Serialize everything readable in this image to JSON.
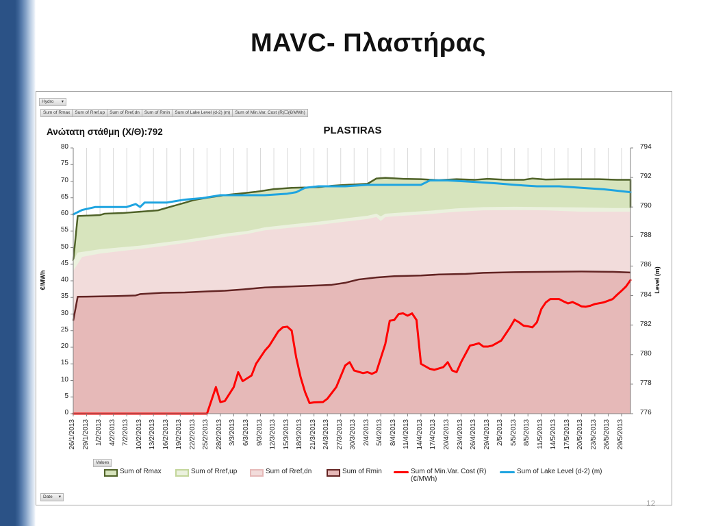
{
  "slide": {
    "title": "MAVC- Πλαστήρας",
    "page_number": "12"
  },
  "pivot": {
    "filter_button": "Hydro",
    "value_fields": [
      "Sum of Rmax",
      "Sum of Rref,up",
      "Sum of Rref,dn",
      "Sum of Rmin",
      "Sum of Lake Level (d-2) (m)",
      "Sum of Min.Var. Cost (R)☐(€/MWh)"
    ],
    "values_button": "Values",
    "axis_button": "Date"
  },
  "chart_data": {
    "type": "area",
    "title": "PLASTIRAS",
    "caption": "Ανώτατη στάθμη (Χ/Θ):792",
    "ylabel": "€/MWh",
    "y2label": "Level (m)",
    "ylim": [
      0,
      80
    ],
    "y2lim": [
      776,
      794
    ],
    "yticks": [
      0,
      5,
      10,
      15,
      20,
      25,
      30,
      35,
      40,
      45,
      50,
      55,
      60,
      65,
      70,
      75,
      80
    ],
    "y2ticks": [
      776,
      778,
      780,
      782,
      784,
      786,
      788,
      790,
      792,
      794
    ],
    "grid": "vertical",
    "legend_position": "bottom",
    "x_start": "2013-01-26",
    "x_end": "2013-05-31",
    "xticks": [
      "26/1/2013",
      "29/1/2013",
      "1/2/2013",
      "4/2/2013",
      "7/2/2013",
      "10/2/2013",
      "13/2/2013",
      "16/2/2013",
      "19/2/2013",
      "22/2/2013",
      "25/2/2013",
      "28/2/2013",
      "3/3/2013",
      "6/3/2013",
      "9/3/2013",
      "12/3/2013",
      "15/3/2013",
      "18/3/2013",
      "21/3/2013",
      "24/3/2013",
      "27/3/2013",
      "30/3/2013",
      "2/4/2013",
      "5/4/2013",
      "8/4/2013",
      "11/4/2013",
      "14/4/2013",
      "17/4/2013",
      "20/4/2013",
      "23/4/2013",
      "26/4/2013",
      "29/4/2013",
      "2/5/2013",
      "5/5/2013",
      "8/5/2013",
      "11/5/2013",
      "14/5/2013",
      "17/5/2013",
      "20/5/2013",
      "23/5/2013",
      "26/5/2013",
      "29/5/2013"
    ],
    "series": [
      {
        "name": "Sum of Rmax",
        "kind": "area",
        "axis": "left",
        "fill": "#d7e4bd",
        "stroke": "#4f6228",
        "points": [
          [
            "2013-01-26",
            46
          ],
          [
            "2013-01-27",
            59.5
          ],
          [
            "2013-02-01",
            59.8
          ],
          [
            "2013-02-02",
            60.2
          ],
          [
            "2013-02-06",
            60.4
          ],
          [
            "2013-02-10",
            60.8
          ],
          [
            "2013-02-14",
            61.2
          ],
          [
            "2013-02-15",
            61.6
          ],
          [
            "2013-02-20",
            63.5
          ],
          [
            "2013-02-22",
            64.3
          ],
          [
            "2013-02-25",
            65.0
          ],
          [
            "2013-03-01",
            65.8
          ],
          [
            "2013-03-04",
            66.2
          ],
          [
            "2013-03-08",
            66.8
          ],
          [
            "2013-03-12",
            67.6
          ],
          [
            "2013-03-16",
            68.0
          ],
          [
            "2013-03-22",
            68.2
          ],
          [
            "2013-03-25",
            68.6
          ],
          [
            "2013-03-27",
            68.8
          ],
          [
            "2013-03-30",
            69.0
          ],
          [
            "2013-04-02",
            69.2
          ],
          [
            "2013-04-04",
            70.8
          ],
          [
            "2013-04-06",
            71.0
          ],
          [
            "2013-04-10",
            70.7
          ],
          [
            "2013-04-14",
            70.6
          ],
          [
            "2013-04-18",
            70.3
          ],
          [
            "2013-04-22",
            70.6
          ],
          [
            "2013-04-26",
            70.4
          ],
          [
            "2013-04-29",
            70.7
          ],
          [
            "2013-05-03",
            70.4
          ],
          [
            "2013-05-07",
            70.4
          ],
          [
            "2013-05-09",
            70.8
          ],
          [
            "2013-05-12",
            70.5
          ],
          [
            "2013-05-16",
            70.6
          ],
          [
            "2013-05-20",
            70.6
          ],
          [
            "2013-05-24",
            70.6
          ],
          [
            "2013-05-28",
            70.4
          ],
          [
            "2013-05-31",
            70.4
          ],
          [
            "2013-05-31",
            62
          ]
        ]
      },
      {
        "name": "Sum of Rref,up",
        "kind": "area",
        "axis": "left",
        "fill": "#ebf1de",
        "stroke": "#ebf1de",
        "points": [
          [
            "2013-01-26",
            46
          ],
          [
            "2013-01-27",
            48.5
          ],
          [
            "2013-02-01",
            49.5
          ],
          [
            "2013-02-05",
            50.0
          ],
          [
            "2013-02-10",
            50.6
          ],
          [
            "2013-02-15",
            51.5
          ],
          [
            "2013-02-20",
            52.3
          ],
          [
            "2013-02-25",
            53.3
          ],
          [
            "2013-03-01",
            54.2
          ],
          [
            "2013-03-06",
            55.0
          ],
          [
            "2013-03-10",
            56.1
          ],
          [
            "2013-03-16",
            57.0
          ],
          [
            "2013-03-22",
            57.8
          ],
          [
            "2013-03-28",
            58.8
          ],
          [
            "2013-04-02",
            59.6
          ],
          [
            "2013-04-04",
            60.2
          ],
          [
            "2013-04-05",
            59.4
          ],
          [
            "2013-04-06",
            60.2
          ],
          [
            "2013-04-10",
            60.6
          ],
          [
            "2013-04-16",
            61.1
          ],
          [
            "2013-04-22",
            61.8
          ],
          [
            "2013-04-28",
            62.2
          ],
          [
            "2013-05-05",
            62.3
          ],
          [
            "2013-05-12",
            62.2
          ],
          [
            "2013-05-20",
            62.1
          ],
          [
            "2013-05-27",
            61.9
          ],
          [
            "2013-05-31",
            61.9
          ]
        ]
      },
      {
        "name": "Sum of Rref,dn",
        "kind": "area",
        "axis": "left",
        "fill": "#f2dcdb",
        "stroke": "#f2dcdb",
        "points": [
          [
            "2013-01-26",
            43
          ],
          [
            "2013-01-28",
            47.2
          ],
          [
            "2013-02-01",
            48.2
          ],
          [
            "2013-02-06",
            49.0
          ],
          [
            "2013-02-10",
            49.6
          ],
          [
            "2013-02-15",
            50.4
          ],
          [
            "2013-02-20",
            51.4
          ],
          [
            "2013-02-25",
            52.4
          ],
          [
            "2013-03-01",
            53.2
          ],
          [
            "2013-03-06",
            54.1
          ],
          [
            "2013-03-10",
            55.2
          ],
          [
            "2013-03-16",
            56.0
          ],
          [
            "2013-03-22",
            56.8
          ],
          [
            "2013-03-28",
            57.8
          ],
          [
            "2013-04-02",
            58.6
          ],
          [
            "2013-04-04",
            59.2
          ],
          [
            "2013-04-05",
            58.0
          ],
          [
            "2013-04-06",
            59.2
          ],
          [
            "2013-04-10",
            59.6
          ],
          [
            "2013-04-16",
            60.1
          ],
          [
            "2013-04-22",
            60.8
          ],
          [
            "2013-04-28",
            61.2
          ],
          [
            "2013-05-05",
            61.3
          ],
          [
            "2013-05-12",
            61.2
          ],
          [
            "2013-05-20",
            60.8
          ],
          [
            "2013-05-27",
            60.8
          ],
          [
            "2013-05-31",
            60.8
          ]
        ]
      },
      {
        "name": "Sum of Rmin",
        "kind": "area",
        "axis": "left",
        "fill": "#e6b9b8",
        "stroke": "#632423",
        "points": [
          [
            "2013-01-26",
            28
          ],
          [
            "2013-01-27",
            35.2
          ],
          [
            "2013-02-01",
            35.3
          ],
          [
            "2013-02-05",
            35.4
          ],
          [
            "2013-02-09",
            35.6
          ],
          [
            "2013-02-10",
            36.0
          ],
          [
            "2013-02-15",
            36.4
          ],
          [
            "2013-02-20",
            36.5
          ],
          [
            "2013-02-25",
            36.8
          ],
          [
            "2013-03-01",
            37.0
          ],
          [
            "2013-03-05",
            37.4
          ],
          [
            "2013-03-10",
            38.0
          ],
          [
            "2013-03-16",
            38.3
          ],
          [
            "2013-03-22",
            38.6
          ],
          [
            "2013-03-25",
            38.8
          ],
          [
            "2013-03-28",
            39.4
          ],
          [
            "2013-03-31",
            40.4
          ],
          [
            "2013-04-04",
            41.0
          ],
          [
            "2013-04-08",
            41.4
          ],
          [
            "2013-04-14",
            41.6
          ],
          [
            "2013-04-18",
            41.9
          ],
          [
            "2013-04-24",
            42.1
          ],
          [
            "2013-04-28",
            42.4
          ],
          [
            "2013-05-05",
            42.6
          ],
          [
            "2013-05-12",
            42.7
          ],
          [
            "2013-05-20",
            42.8
          ],
          [
            "2013-05-27",
            42.7
          ],
          [
            "2013-05-31",
            42.5
          ]
        ]
      },
      {
        "name": "Sum of Min.Var. Cost (R) (€/MWh)",
        "kind": "line",
        "axis": "left",
        "stroke": "#ff0000",
        "points": [
          [
            "2013-01-26",
            0
          ],
          [
            "2013-02-24",
            0
          ],
          [
            "2013-02-25",
            0
          ],
          [
            "2013-02-27",
            8
          ],
          [
            "2013-02-28",
            3.5
          ],
          [
            "2013-03-01",
            3.8
          ],
          [
            "2013-03-03",
            8
          ],
          [
            "2013-03-04",
            12.5
          ],
          [
            "2013-03-05",
            9.8
          ],
          [
            "2013-03-07",
            11.5
          ],
          [
            "2013-03-08",
            15
          ],
          [
            "2013-03-10",
            19
          ],
          [
            "2013-03-11",
            20.5
          ],
          [
            "2013-03-13",
            24.8
          ],
          [
            "2013-03-14",
            26
          ],
          [
            "2013-03-15",
            26.2
          ],
          [
            "2013-03-16",
            25
          ],
          [
            "2013-03-17",
            17
          ],
          [
            "2013-03-18",
            11
          ],
          [
            "2013-03-19",
            6.5
          ],
          [
            "2013-03-20",
            3.2
          ],
          [
            "2013-03-21",
            3.4
          ],
          [
            "2013-03-23",
            3.5
          ],
          [
            "2013-03-24",
            4.5
          ],
          [
            "2013-03-26",
            8
          ],
          [
            "2013-03-28",
            14.5
          ],
          [
            "2013-03-29",
            15.5
          ],
          [
            "2013-03-30",
            13
          ],
          [
            "2013-04-01",
            12.2
          ],
          [
            "2013-04-02",
            12.5
          ],
          [
            "2013-04-03",
            12
          ],
          [
            "2013-04-04",
            12.6
          ],
          [
            "2013-04-06",
            21
          ],
          [
            "2013-04-07",
            28
          ],
          [
            "2013-04-08",
            28.2
          ],
          [
            "2013-04-09",
            30
          ],
          [
            "2013-04-10",
            30.2
          ],
          [
            "2013-04-11",
            29.5
          ],
          [
            "2013-04-12",
            30.2
          ],
          [
            "2013-04-13",
            28.2
          ],
          [
            "2013-04-14",
            15
          ],
          [
            "2013-04-16",
            13.5
          ],
          [
            "2013-04-17",
            13.2
          ],
          [
            "2013-04-19",
            14
          ],
          [
            "2013-04-20",
            15.5
          ],
          [
            "2013-04-21",
            13
          ],
          [
            "2013-04-22",
            12.5
          ],
          [
            "2013-04-23",
            15.5
          ],
          [
            "2013-04-25",
            20.5
          ],
          [
            "2013-04-26",
            20.8
          ],
          [
            "2013-04-27",
            21.2
          ],
          [
            "2013-04-28",
            20.2
          ],
          [
            "2013-04-29",
            20.2
          ],
          [
            "2013-04-30",
            20.5
          ],
          [
            "2013-05-02",
            22
          ],
          [
            "2013-05-04",
            26
          ],
          [
            "2013-05-05",
            28.3
          ],
          [
            "2013-05-06",
            27.5
          ],
          [
            "2013-05-07",
            26.5
          ],
          [
            "2013-05-08",
            26.3
          ],
          [
            "2013-05-09",
            26
          ],
          [
            "2013-05-10",
            27.5
          ],
          [
            "2013-05-11",
            31.5
          ],
          [
            "2013-05-12",
            33.5
          ],
          [
            "2013-05-13",
            34.5
          ],
          [
            "2013-05-15",
            34.5
          ],
          [
            "2013-05-16",
            33.8
          ],
          [
            "2013-05-17",
            33.2
          ],
          [
            "2013-05-18",
            33.6
          ],
          [
            "2013-05-19",
            33
          ],
          [
            "2013-05-20",
            32.3
          ],
          [
            "2013-05-21",
            32.2
          ],
          [
            "2013-05-22",
            32.5
          ],
          [
            "2013-05-23",
            33
          ],
          [
            "2013-05-25",
            33.5
          ],
          [
            "2013-05-27",
            34.5
          ],
          [
            "2013-05-28",
            35.8
          ],
          [
            "2013-05-29",
            37
          ],
          [
            "2013-05-30",
            38.3
          ],
          [
            "2013-05-31",
            40.2
          ]
        ]
      },
      {
        "name": "Sum of Lake Level (d-2) (m)",
        "kind": "line",
        "axis": "right",
        "stroke": "#1ea4e0",
        "points": [
          [
            "2013-01-26",
            789.5
          ],
          [
            "2013-01-28",
            789.8
          ],
          [
            "2013-01-31",
            790.0
          ],
          [
            "2013-02-04",
            790.0
          ],
          [
            "2013-02-07",
            790.0
          ],
          [
            "2013-02-09",
            790.2
          ],
          [
            "2013-02-10",
            790.0
          ],
          [
            "2013-02-11",
            790.3
          ],
          [
            "2013-02-16",
            790.3
          ],
          [
            "2013-02-20",
            790.5
          ],
          [
            "2013-02-24",
            790.6
          ],
          [
            "2013-02-28",
            790.8
          ],
          [
            "2013-03-04",
            790.8
          ],
          [
            "2013-03-06",
            790.8
          ],
          [
            "2013-03-10",
            790.8
          ],
          [
            "2013-03-15",
            790.9
          ],
          [
            "2013-03-17",
            791.0
          ],
          [
            "2013-03-19",
            791.3
          ],
          [
            "2013-03-22",
            791.4
          ],
          [
            "2013-03-28",
            791.4
          ],
          [
            "2013-04-02",
            791.5
          ],
          [
            "2013-04-09",
            791.5
          ],
          [
            "2013-04-14",
            791.5
          ],
          [
            "2013-04-16",
            791.8
          ],
          [
            "2013-04-20",
            791.8
          ],
          [
            "2013-04-26",
            791.7
          ],
          [
            "2013-05-01",
            791.6
          ],
          [
            "2013-05-05",
            791.5
          ],
          [
            "2013-05-10",
            791.4
          ],
          [
            "2013-05-15",
            791.4
          ],
          [
            "2013-05-20",
            791.3
          ],
          [
            "2013-05-25",
            791.2
          ],
          [
            "2013-05-31",
            791.0
          ]
        ]
      }
    ],
    "legend": [
      {
        "label": "Sum of Rmax",
        "symbol": "box",
        "fill": "#d7e4bd",
        "stroke": "#4f6228"
      },
      {
        "label": "Sum of Rref,up",
        "symbol": "box",
        "fill": "#ebf1de",
        "stroke": "#c3d69b"
      },
      {
        "label": "Sum of Rref,dn",
        "symbol": "box",
        "fill": "#f2dcdb",
        "stroke": "#e6b9b8"
      },
      {
        "label": "Sum of Rmin",
        "symbol": "box",
        "fill": "#e6b9b8",
        "stroke": "#632423"
      },
      {
        "label": "Sum of Min.Var. Cost (R)",
        "label2": "(€/MWh)",
        "symbol": "line",
        "stroke": "#ff0000"
      },
      {
        "label": "Sum of Lake Level (d-2) (m)",
        "symbol": "line",
        "stroke": "#1ea4e0"
      }
    ]
  }
}
